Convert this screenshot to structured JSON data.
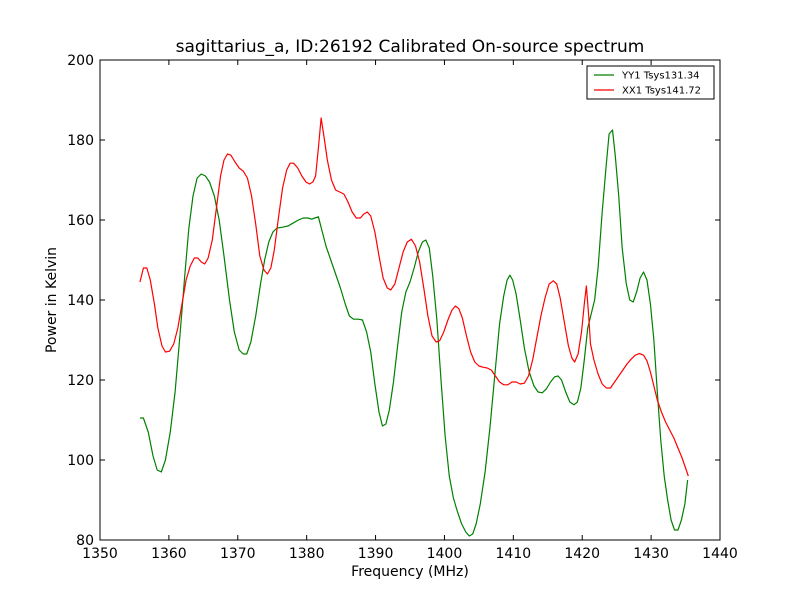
{
  "chart_data": {
    "type": "line",
    "title": "sagittarius_a, ID:26192 Calibrated On-source spectrum",
    "xlabel": "Frequency (MHz)",
    "ylabel": "Power in Kelvin",
    "xlim": [
      1350,
      1440
    ],
    "ylim": [
      80,
      200
    ],
    "xticks": [
      1350,
      1360,
      1370,
      1380,
      1390,
      1400,
      1410,
      1420,
      1430,
      1440
    ],
    "yticks": [
      80,
      100,
      120,
      140,
      160,
      180,
      200
    ],
    "grid": false,
    "legend_position": "top-right",
    "series": [
      {
        "name": "YY1 Tsys131.34",
        "color": "#008000",
        "points": [
          [
            1355.8,
            110.5
          ],
          [
            1356.3,
            110.5
          ],
          [
            1357,
            107
          ],
          [
            1357.7,
            101
          ],
          [
            1358.3,
            97.5
          ],
          [
            1358.9,
            97
          ],
          [
            1359.5,
            100
          ],
          [
            1360.2,
            107
          ],
          [
            1360.9,
            117
          ],
          [
            1361.6,
            131
          ],
          [
            1362.3,
            146
          ],
          [
            1362.9,
            158
          ],
          [
            1363.5,
            166
          ],
          [
            1364.1,
            170.5
          ],
          [
            1364.7,
            171.5
          ],
          [
            1365.3,
            171
          ],
          [
            1365.9,
            169.5
          ],
          [
            1366.6,
            166
          ],
          [
            1367.3,
            160
          ],
          [
            1368,
            151
          ],
          [
            1368.8,
            140
          ],
          [
            1369.5,
            132
          ],
          [
            1370.2,
            127.5
          ],
          [
            1370.8,
            126.5
          ],
          [
            1371.3,
            126.5
          ],
          [
            1371.9,
            129.5
          ],
          [
            1372.6,
            136
          ],
          [
            1373.3,
            144
          ],
          [
            1373.9,
            150
          ],
          [
            1374.5,
            154.5
          ],
          [
            1375.1,
            157
          ],
          [
            1375.7,
            158
          ],
          [
            1376.5,
            158.2
          ],
          [
            1377.3,
            158.5
          ],
          [
            1378,
            159.2
          ],
          [
            1378.8,
            160
          ],
          [
            1379.5,
            160.5
          ],
          [
            1380.2,
            160.5
          ],
          [
            1380.7,
            160.2
          ],
          [
            1381.2,
            160.5
          ],
          [
            1381.7,
            160.8
          ],
          [
            1382.2,
            157.5
          ],
          [
            1382.8,
            153.5
          ],
          [
            1383.5,
            150
          ],
          [
            1384.2,
            146.5
          ],
          [
            1384.9,
            143
          ],
          [
            1385.6,
            139
          ],
          [
            1386.2,
            136
          ],
          [
            1386.8,
            135.2
          ],
          [
            1387.5,
            135.2
          ],
          [
            1388.1,
            135
          ],
          [
            1388.7,
            132
          ],
          [
            1389.3,
            127
          ],
          [
            1389.9,
            119
          ],
          [
            1390.5,
            112
          ],
          [
            1391,
            108.5
          ],
          [
            1391.5,
            109
          ],
          [
            1392,
            112.5
          ],
          [
            1392.6,
            119.5
          ],
          [
            1393.2,
            128.5
          ],
          [
            1393.8,
            137
          ],
          [
            1394.4,
            142
          ],
          [
            1395,
            144.5
          ],
          [
            1395.6,
            148
          ],
          [
            1396.2,
            152
          ],
          [
            1396.8,
            154.5
          ],
          [
            1397.3,
            155
          ],
          [
            1397.8,
            153
          ],
          [
            1398.3,
            146
          ],
          [
            1398.9,
            135
          ],
          [
            1399.5,
            120
          ],
          [
            1400.1,
            106
          ],
          [
            1400.7,
            96
          ],
          [
            1401.3,
            90.5
          ],
          [
            1401.9,
            87
          ],
          [
            1402.5,
            84
          ],
          [
            1403.1,
            82
          ],
          [
            1403.6,
            81
          ],
          [
            1404.1,
            81.5
          ],
          [
            1404.6,
            84
          ],
          [
            1405.2,
            89
          ],
          [
            1405.9,
            97
          ],
          [
            1406.6,
            108
          ],
          [
            1407.3,
            121
          ],
          [
            1408,
            134
          ],
          [
            1408.6,
            141
          ],
          [
            1409.1,
            145
          ],
          [
            1409.5,
            146.2
          ],
          [
            1409.9,
            145
          ],
          [
            1410.4,
            141.5
          ],
          [
            1411,
            135
          ],
          [
            1411.6,
            128
          ],
          [
            1412.3,
            122
          ],
          [
            1413,
            118.5
          ],
          [
            1413.6,
            117
          ],
          [
            1414.2,
            116.8
          ],
          [
            1414.8,
            117.8
          ],
          [
            1415.4,
            119.5
          ],
          [
            1416,
            120.8
          ],
          [
            1416.5,
            121
          ],
          [
            1417,
            120
          ],
          [
            1417.6,
            117
          ],
          [
            1418.2,
            114.5
          ],
          [
            1418.8,
            113.8
          ],
          [
            1419.3,
            114.5
          ],
          [
            1419.8,
            118
          ],
          [
            1420.3,
            125
          ],
          [
            1420.8,
            133
          ],
          [
            1421.3,
            136.5
          ],
          [
            1421.8,
            140
          ],
          [
            1422.3,
            148
          ],
          [
            1422.9,
            162
          ],
          [
            1423.5,
            174
          ],
          [
            1423.9,
            181.5
          ],
          [
            1424.4,
            182.5
          ],
          [
            1424.8,
            176
          ],
          [
            1425.3,
            166
          ],
          [
            1425.8,
            153
          ],
          [
            1426.4,
            144
          ],
          [
            1426.9,
            140
          ],
          [
            1427.4,
            139.5
          ],
          [
            1427.9,
            142
          ],
          [
            1428.4,
            145.5
          ],
          [
            1428.9,
            147
          ],
          [
            1429.4,
            145
          ],
          [
            1429.9,
            139
          ],
          [
            1430.4,
            130
          ],
          [
            1430.9,
            117
          ],
          [
            1431.4,
            105
          ],
          [
            1431.9,
            96
          ],
          [
            1432.4,
            90
          ],
          [
            1432.9,
            85
          ],
          [
            1433.4,
            82.5
          ],
          [
            1433.9,
            82.5
          ],
          [
            1434.4,
            85
          ],
          [
            1434.9,
            89
          ],
          [
            1435.3,
            95
          ]
        ]
      },
      {
        "name": "XX1 Tsys141.72",
        "color": "#ff0000",
        "points": [
          [
            1355.8,
            144.5
          ],
          [
            1356.3,
            148
          ],
          [
            1356.8,
            148
          ],
          [
            1357.3,
            145
          ],
          [
            1357.9,
            139
          ],
          [
            1358.4,
            133
          ],
          [
            1359,
            128.5
          ],
          [
            1359.5,
            127
          ],
          [
            1360.1,
            127.2
          ],
          [
            1360.7,
            129
          ],
          [
            1361.3,
            133
          ],
          [
            1361.9,
            139
          ],
          [
            1362.5,
            145
          ],
          [
            1363.1,
            148.5
          ],
          [
            1363.7,
            150.5
          ],
          [
            1364.2,
            150.5
          ],
          [
            1364.7,
            149.5
          ],
          [
            1365.2,
            149
          ],
          [
            1365.7,
            150.5
          ],
          [
            1366.3,
            155
          ],
          [
            1366.9,
            163
          ],
          [
            1367.5,
            171
          ],
          [
            1368,
            175
          ],
          [
            1368.5,
            176.5
          ],
          [
            1369,
            176.2
          ],
          [
            1369.6,
            174.5
          ],
          [
            1370.2,
            173
          ],
          [
            1370.8,
            172.2
          ],
          [
            1371.4,
            170.5
          ],
          [
            1372,
            166
          ],
          [
            1372.6,
            159
          ],
          [
            1373.2,
            151
          ],
          [
            1373.8,
            147.5
          ],
          [
            1374.3,
            146.5
          ],
          [
            1374.8,
            148
          ],
          [
            1375.3,
            152.5
          ],
          [
            1375.9,
            160.5
          ],
          [
            1376.5,
            168
          ],
          [
            1377.1,
            172.5
          ],
          [
            1377.6,
            174.2
          ],
          [
            1378.1,
            174.2
          ],
          [
            1378.7,
            173
          ],
          [
            1379.3,
            171
          ],
          [
            1379.9,
            169.5
          ],
          [
            1380.4,
            169
          ],
          [
            1380.9,
            169.5
          ],
          [
            1381.3,
            171
          ],
          [
            1381.7,
            178
          ],
          [
            1382.1,
            185.5
          ],
          [
            1382.5,
            181
          ],
          [
            1383,
            175
          ],
          [
            1383.6,
            170
          ],
          [
            1384.2,
            167.5
          ],
          [
            1384.8,
            167
          ],
          [
            1385.4,
            166.5
          ],
          [
            1386,
            164.5
          ],
          [
            1386.6,
            162
          ],
          [
            1387.2,
            160.5
          ],
          [
            1387.8,
            160.5
          ],
          [
            1388.3,
            161.5
          ],
          [
            1388.8,
            162
          ],
          [
            1389.3,
            161
          ],
          [
            1389.9,
            157
          ],
          [
            1390.5,
            151
          ],
          [
            1391.1,
            145.5
          ],
          [
            1391.7,
            143
          ],
          [
            1392.2,
            142.5
          ],
          [
            1392.8,
            144
          ],
          [
            1393.4,
            148
          ],
          [
            1394,
            152
          ],
          [
            1394.6,
            154.5
          ],
          [
            1395.2,
            155.2
          ],
          [
            1395.8,
            153.5
          ],
          [
            1396.4,
            149.5
          ],
          [
            1397,
            143
          ],
          [
            1397.6,
            136
          ],
          [
            1398.2,
            131
          ],
          [
            1398.8,
            129.5
          ],
          [
            1399.3,
            129.8
          ],
          [
            1399.9,
            132
          ],
          [
            1400.5,
            135
          ],
          [
            1401.1,
            137.5
          ],
          [
            1401.6,
            138.5
          ],
          [
            1402.1,
            137.8
          ],
          [
            1402.6,
            135.5
          ],
          [
            1403.2,
            131
          ],
          [
            1403.8,
            127
          ],
          [
            1404.4,
            124.5
          ],
          [
            1405,
            123.5
          ],
          [
            1405.6,
            123.2
          ],
          [
            1406.2,
            123
          ],
          [
            1406.8,
            122.5
          ],
          [
            1407.4,
            121
          ],
          [
            1408,
            119.5
          ],
          [
            1408.6,
            118.8
          ],
          [
            1409.2,
            118.8
          ],
          [
            1409.8,
            119.5
          ],
          [
            1410.4,
            119.5
          ],
          [
            1411,
            119
          ],
          [
            1411.6,
            119.2
          ],
          [
            1412.2,
            121
          ],
          [
            1412.8,
            125
          ],
          [
            1413.4,
            130.5
          ],
          [
            1414,
            136
          ],
          [
            1414.6,
            140.5
          ],
          [
            1415.2,
            144
          ],
          [
            1415.8,
            144.8
          ],
          [
            1416.3,
            144
          ],
          [
            1416.8,
            140.5
          ],
          [
            1417.4,
            134.5
          ],
          [
            1418,
            128.5
          ],
          [
            1418.5,
            125.5
          ],
          [
            1418.9,
            124.5
          ],
          [
            1419.4,
            126.5
          ],
          [
            1419.9,
            132
          ],
          [
            1420.3,
            139
          ],
          [
            1420.6,
            143.5
          ],
          [
            1420.9,
            137
          ],
          [
            1421.2,
            129
          ],
          [
            1421.7,
            125
          ],
          [
            1422.3,
            121.5
          ],
          [
            1422.9,
            119
          ],
          [
            1423.5,
            118
          ],
          [
            1424.1,
            118
          ],
          [
            1424.7,
            119.5
          ],
          [
            1425.3,
            121
          ],
          [
            1425.9,
            122.5
          ],
          [
            1426.5,
            124
          ],
          [
            1427.1,
            125.2
          ],
          [
            1427.7,
            126.2
          ],
          [
            1428.3,
            126.6
          ],
          [
            1428.9,
            126.2
          ],
          [
            1429.4,
            124.8
          ],
          [
            1429.9,
            122
          ],
          [
            1430.4,
            118.5
          ],
          [
            1430.9,
            115
          ],
          [
            1431.5,
            112
          ],
          [
            1432.1,
            109.5
          ],
          [
            1432.7,
            107.5
          ],
          [
            1433.3,
            105.5
          ],
          [
            1433.9,
            103
          ],
          [
            1434.5,
            100.5
          ],
          [
            1435,
            98
          ],
          [
            1435.4,
            96
          ]
        ]
      }
    ]
  }
}
